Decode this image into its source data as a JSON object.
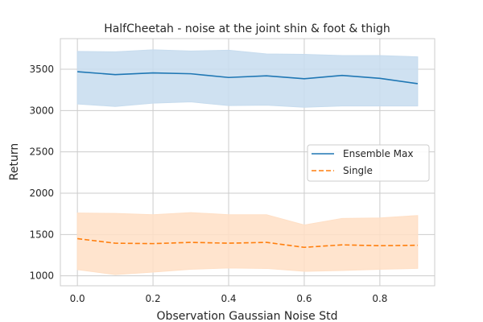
{
  "chart_data": {
    "type": "line",
    "title": "HalfCheetah - noise at the joint shin & foot & thigh",
    "xlabel": "Observation Gaussian Noise Std",
    "ylabel": "Return",
    "xlim": [
      -0.045,
      0.945
    ],
    "ylim": [
      880,
      3870
    ],
    "x": [
      0.0,
      0.1,
      0.2,
      0.3,
      0.4,
      0.5,
      0.6,
      0.7,
      0.8,
      0.9
    ],
    "xticks": [
      0.0,
      0.2,
      0.4,
      0.6,
      0.8
    ],
    "xtick_labels": [
      "0.0",
      "0.2",
      "0.4",
      "0.6",
      "0.8"
    ],
    "yticks": [
      1000,
      1500,
      2000,
      2500,
      3000,
      3500
    ],
    "ytick_labels": [
      "1000",
      "1500",
      "2000",
      "2500",
      "3000",
      "3500"
    ],
    "grid": true,
    "legend_placement": "center-right",
    "series": [
      {
        "name": "Ensemble Max",
        "style": "solid",
        "color": "#1f77b4",
        "band_color": "#c7dcee",
        "values": [
          3470,
          3435,
          3455,
          3445,
          3400,
          3420,
          3385,
          3425,
          3390,
          3325
        ],
        "upper": [
          3715,
          3710,
          3735,
          3720,
          3730,
          3685,
          3680,
          3665,
          3665,
          3650
        ],
        "lower": [
          3080,
          3050,
          3090,
          3105,
          3060,
          3065,
          3040,
          3055,
          3055,
          3055
        ]
      },
      {
        "name": "Single",
        "style": "dashed",
        "color": "#ff7f0e",
        "band_color": "#ffdfc5",
        "values": [
          1450,
          1395,
          1390,
          1405,
          1395,
          1405,
          1345,
          1375,
          1365,
          1370
        ],
        "upper": [
          1760,
          1755,
          1740,
          1765,
          1740,
          1740,
          1615,
          1695,
          1700,
          1730
        ],
        "lower": [
          1075,
          1015,
          1045,
          1080,
          1095,
          1090,
          1055,
          1065,
          1080,
          1090
        ]
      }
    ]
  }
}
